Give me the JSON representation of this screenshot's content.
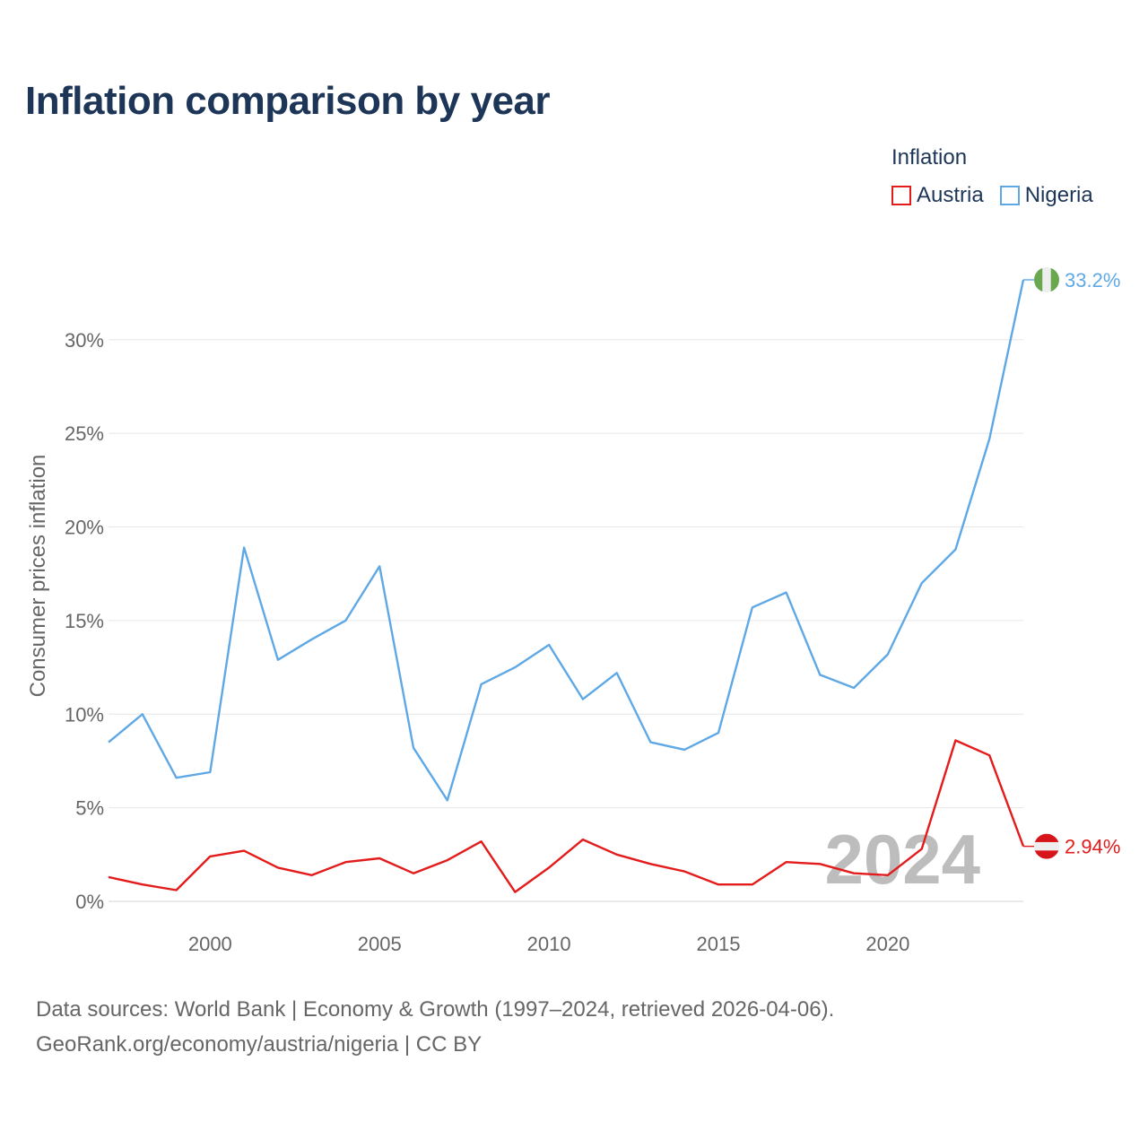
{
  "title": "Inflation comparison by year",
  "legend": {
    "title": "Inflation",
    "items": [
      {
        "name": "Austria",
        "color": "#e31b1b"
      },
      {
        "name": "Nigeria",
        "color": "#5fa8e6"
      }
    ]
  },
  "footer": {
    "line1": "Data sources: World Bank | Economy & Growth (1997–2024, retrieved 2026-04-06).",
    "line2": "GeoRank.org/economy/austria/nigeria | CC BY"
  },
  "chart_data": {
    "type": "line",
    "title": "Inflation comparison by year",
    "xlabel": "",
    "ylabel": "Consumer prices inflation",
    "x": [
      1997,
      1998,
      1999,
      2000,
      2001,
      2002,
      2003,
      2004,
      2005,
      2006,
      2007,
      2008,
      2009,
      2010,
      2011,
      2012,
      2013,
      2014,
      2015,
      2016,
      2017,
      2018,
      2019,
      2020,
      2021,
      2022,
      2023,
      2024
    ],
    "xlim": [
      1997,
      2024
    ],
    "ylim": [
      0,
      33.2
    ],
    "x_ticks": [
      "2000",
      "2005",
      "2010",
      "2015",
      "2020"
    ],
    "x_tick_values": [
      2000,
      2005,
      2010,
      2015,
      2020
    ],
    "y_ticks": [
      "0%",
      "5%",
      "10%",
      "15%",
      "20%",
      "25%",
      "30%"
    ],
    "y_tick_values": [
      0,
      5,
      10,
      15,
      20,
      25,
      30
    ],
    "grid": true,
    "year_watermark": "2024",
    "series": [
      {
        "name": "Austria",
        "color": "#e31b1b",
        "end_label": "2.94%",
        "values": [
          1.3,
          0.9,
          0.6,
          2.4,
          2.7,
          1.8,
          1.4,
          2.1,
          2.3,
          1.5,
          2.2,
          3.2,
          0.5,
          1.8,
          3.3,
          2.5,
          2.0,
          1.6,
          0.9,
          0.9,
          2.1,
          2.0,
          1.5,
          1.4,
          2.8,
          8.6,
          7.8,
          2.94
        ]
      },
      {
        "name": "Nigeria",
        "color": "#5fa8e6",
        "end_label": "33.2%",
        "values": [
          8.5,
          10.0,
          6.6,
          6.9,
          18.9,
          12.9,
          14.0,
          15.0,
          17.9,
          8.2,
          5.4,
          11.6,
          12.5,
          13.7,
          10.8,
          12.2,
          8.5,
          8.1,
          9.0,
          15.7,
          16.5,
          12.1,
          11.4,
          13.2,
          17.0,
          18.8,
          24.7,
          33.2
        ]
      }
    ]
  }
}
